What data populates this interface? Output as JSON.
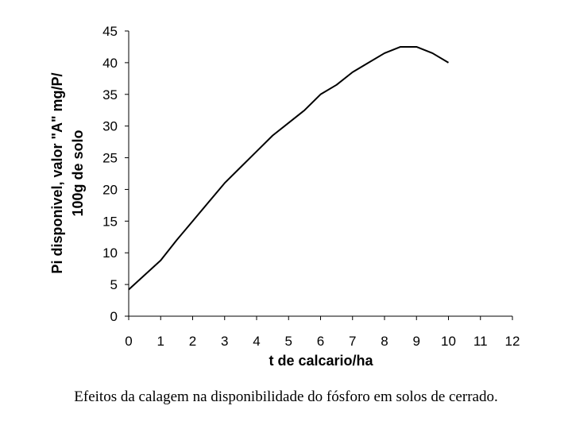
{
  "chart_data": {
    "type": "line",
    "xlabel": "t de calcario/ha",
    "ylabel": [
      "Pi disponivel, valor \"A\" mg/P/",
      "100g de solo"
    ],
    "caption": "Efeitos da calagem na disponibilidade do fósforo em solos de cerrado.",
    "x": [
      0,
      0.5,
      1,
      1.5,
      2,
      2.5,
      3,
      3.5,
      4,
      4.5,
      5,
      5.5,
      6,
      6.5,
      7,
      7.5,
      8,
      8.5,
      9,
      9.5,
      10
    ],
    "series": [
      {
        "name": "Pi",
        "color": "#000000",
        "values": [
          4.2,
          6.5,
          8.8,
          12,
          15,
          18,
          21,
          23.5,
          26,
          28.5,
          30.5,
          32.5,
          35,
          36.5,
          38.5,
          40,
          41.5,
          42.5,
          42.5,
          41.5,
          40
        ]
      }
    ],
    "xlim": [
      0,
      12
    ],
    "xticks": [
      0,
      1,
      2,
      3,
      4,
      5,
      6,
      7,
      8,
      9,
      10,
      11,
      12
    ],
    "ylim": [
      0,
      45
    ],
    "yticks": [
      0,
      5,
      10,
      15,
      20,
      25,
      30,
      35,
      40,
      45
    ]
  }
}
